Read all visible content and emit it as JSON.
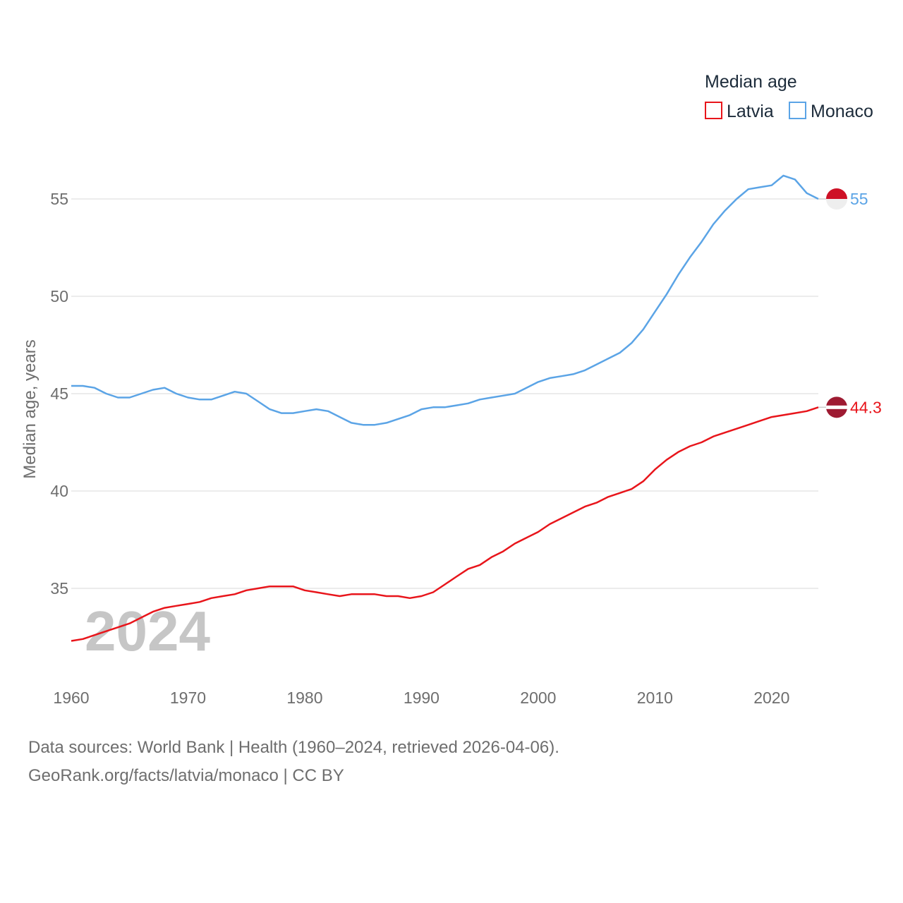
{
  "chart_data": {
    "type": "line",
    "title": "",
    "legend_title": "Median age",
    "ylabel": "Median age, years",
    "xlabel": "",
    "xlim": [
      1960,
      2024
    ],
    "ylim": [
      31.5,
      57.5
    ],
    "x_ticks": [
      1960,
      1970,
      1980,
      1990,
      2000,
      2010,
      2020
    ],
    "y_ticks": [
      35,
      40,
      45,
      50,
      55
    ],
    "year_watermark": "2024",
    "legend_position": "top-right",
    "x": [
      1960,
      1961,
      1962,
      1963,
      1964,
      1965,
      1966,
      1967,
      1968,
      1969,
      1970,
      1971,
      1972,
      1973,
      1974,
      1975,
      1976,
      1977,
      1978,
      1979,
      1980,
      1981,
      1982,
      1983,
      1984,
      1985,
      1986,
      1987,
      1988,
      1989,
      1990,
      1991,
      1992,
      1993,
      1994,
      1995,
      1996,
      1997,
      1998,
      1999,
      2000,
      2001,
      2002,
      2003,
      2004,
      2005,
      2006,
      2007,
      2008,
      2009,
      2010,
      2011,
      2012,
      2013,
      2014,
      2015,
      2016,
      2017,
      2018,
      2019,
      2020,
      2021,
      2022,
      2023,
      2024
    ],
    "series": [
      {
        "name": "Latvia",
        "color": "#e8151b",
        "end_label": "44.3",
        "values": [
          32.3,
          32.4,
          32.6,
          32.8,
          33.0,
          33.2,
          33.5,
          33.8,
          34.0,
          34.1,
          34.2,
          34.3,
          34.5,
          34.6,
          34.7,
          34.9,
          35.0,
          35.1,
          35.1,
          35.1,
          34.9,
          34.8,
          34.7,
          34.6,
          34.7,
          34.7,
          34.7,
          34.6,
          34.6,
          34.5,
          34.6,
          34.8,
          35.2,
          35.6,
          36.0,
          36.2,
          36.6,
          36.9,
          37.3,
          37.6,
          37.9,
          38.3,
          38.6,
          38.9,
          39.2,
          39.4,
          39.7,
          39.9,
          40.1,
          40.5,
          41.1,
          41.6,
          42.0,
          42.3,
          42.5,
          42.8,
          43.0,
          43.2,
          43.4,
          43.6,
          43.8,
          43.9,
          44.0,
          44.1,
          44.3
        ]
      },
      {
        "name": "Monaco",
        "color": "#5ba4e6",
        "end_label": "55",
        "values": [
          45.4,
          45.4,
          45.3,
          45.0,
          44.8,
          44.8,
          45.0,
          45.2,
          45.3,
          45.0,
          44.8,
          44.7,
          44.7,
          44.9,
          45.1,
          45.0,
          44.6,
          44.2,
          44.0,
          44.0,
          44.1,
          44.2,
          44.1,
          43.8,
          43.5,
          43.4,
          43.4,
          43.5,
          43.7,
          43.9,
          44.2,
          44.3,
          44.3,
          44.4,
          44.5,
          44.7,
          44.8,
          44.9,
          45.0,
          45.3,
          45.6,
          45.8,
          45.9,
          46.0,
          46.2,
          46.5,
          46.8,
          47.1,
          47.6,
          48.3,
          49.2,
          50.1,
          51.1,
          52.0,
          52.8,
          53.7,
          54.4,
          55.0,
          55.5,
          55.6,
          55.7,
          56.2,
          56.0,
          55.3,
          55.0
        ]
      }
    ]
  },
  "source": {
    "line1": "Data sources: World Bank | Health (1960–2024, retrieved 2026-04-06).",
    "line2": "GeoRank.org/facts/latvia/monaco | CC BY"
  }
}
